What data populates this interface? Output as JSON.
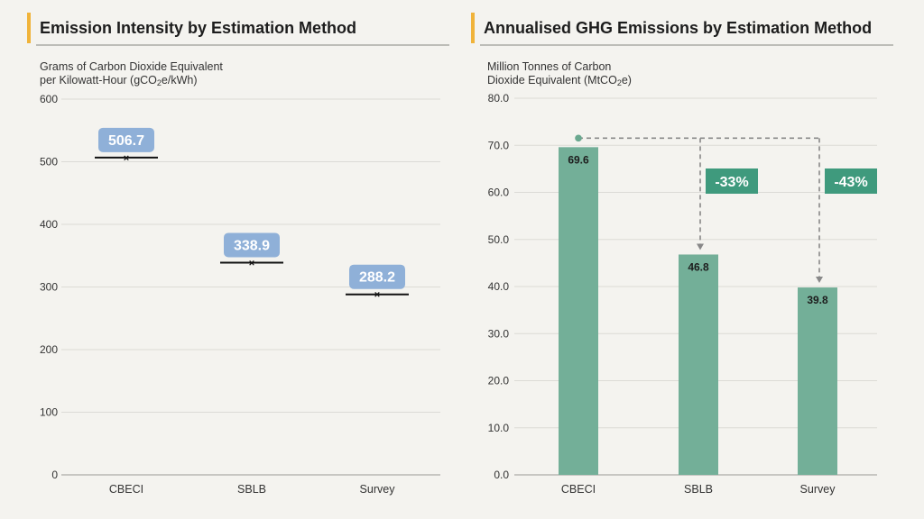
{
  "left": {
    "title": "Emission Intensity by Estimation Method",
    "ylabel_line1": "Grams of Carbon Dioxide Equivalent",
    "ylabel_line2_pre": "per Kilowatt-Hour (gCO",
    "ylabel_line2_sub": "2",
    "ylabel_line2_post": "e/kWh)"
  },
  "right": {
    "title": "Annualised GHG Emissions by Estimation Method",
    "ylabel_line1": "Million Tonnes of Carbon",
    "ylabel_line2_pre": "Dioxide Equivalent (MtCO",
    "ylabel_line2_sub": "2",
    "ylabel_line2_post": "e)"
  },
  "colors": {
    "accent": "#f0b33a",
    "label_box": "#8fb0d8",
    "bar": "#73af98",
    "change_box": "#3f9a7d",
    "connector": "#888888",
    "dot": "#6aa88f"
  },
  "chart_data": [
    {
      "type": "scatter",
      "title": "Emission Intensity by Estimation Method",
      "categories": [
        "CBECI",
        "SBLB",
        "Survey"
      ],
      "values": [
        506.7,
        338.9,
        288.2
      ],
      "labels": [
        "506.7",
        "338.9",
        "288.2"
      ],
      "ylabel": "Grams of Carbon Dioxide Equivalent per Kilowatt-Hour (gCO2e/kWh)",
      "ylim": [
        0,
        600
      ],
      "yticks": [
        "0",
        "100",
        "200",
        "300",
        "400",
        "500",
        "600"
      ],
      "grid": true
    },
    {
      "type": "bar",
      "title": "Annualised GHG Emissions by Estimation Method",
      "categories": [
        "CBECI",
        "SBLB",
        "Survey"
      ],
      "values": [
        69.6,
        46.8,
        39.8
      ],
      "labels": [
        "69.6",
        "46.8",
        "39.8"
      ],
      "ylabel": "Million Tonnes of Carbon Dioxide Equivalent (MtCO2e)",
      "ylim": [
        0,
        80
      ],
      "yticks": [
        "0.0",
        "10.0",
        "20.0",
        "30.0",
        "40.0",
        "50.0",
        "60.0",
        "70.0",
        "80.0"
      ],
      "grid": true,
      "annotations": [
        "-33%",
        "-43%"
      ]
    }
  ]
}
